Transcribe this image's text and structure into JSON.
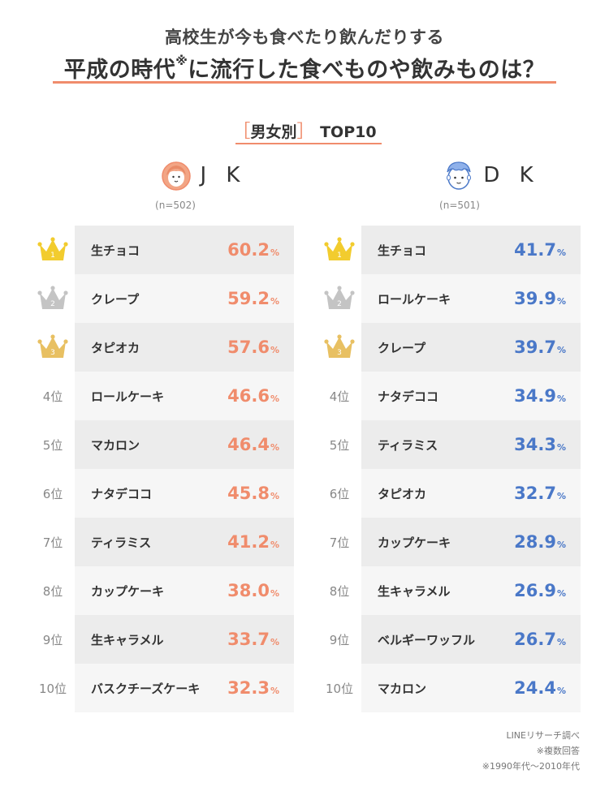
{
  "title_line1": "高校生が今も食べたり飲んだりする",
  "title_line2_main": "平成の時代",
  "title_line2_mark": "※",
  "title_line2_rest": "に流行した食べものや飲みものは？",
  "section": {
    "open": "［",
    "label": "男女別",
    "close": "］",
    "suffix": "TOP10"
  },
  "colors": {
    "accent": "#f08c6c",
    "jk_value": "#f08c6c",
    "dk_value": "#4a78c8",
    "row_dark": "#ececec",
    "row_light": "#f6f6f6",
    "gold": "#f2cc2e",
    "silver": "#c4c4c4",
    "bronze": "#e8c062"
  },
  "rank_icons": [
    "gold-crown",
    "silver-crown",
    "bronze-crown"
  ],
  "chart_data": [
    {
      "type": "table",
      "group": "J K",
      "n": "(n=502)",
      "unit": "%",
      "ranks": [
        "1",
        "2",
        "3",
        "4位",
        "5位",
        "6位",
        "7位",
        "8位",
        "9位",
        "10位"
      ],
      "items": [
        "生チョコ",
        "クレープ",
        "タピオカ",
        "ロールケーキ",
        "マカロン",
        "ナタデココ",
        "ティラミス",
        "カップケーキ",
        "生キャラメル",
        "バスクチーズケーキ"
      ],
      "values": [
        "60.2",
        "59.2",
        "57.6",
        "46.6",
        "46.4",
        "45.8",
        "41.2",
        "38.0",
        "33.7",
        "32.3"
      ]
    },
    {
      "type": "table",
      "group": "D K",
      "n": "(n=501)",
      "unit": "%",
      "ranks": [
        "1",
        "2",
        "3",
        "4位",
        "5位",
        "6位",
        "7位",
        "8位",
        "9位",
        "10位"
      ],
      "items": [
        "生チョコ",
        "ロールケーキ",
        "クレープ",
        "ナタデココ",
        "ティラミス",
        "タピオカ",
        "カップケーキ",
        "生キャラメル",
        "ベルギーワッフル",
        "マカロン"
      ],
      "values": [
        "41.7",
        "39.9",
        "39.7",
        "34.9",
        "34.3",
        "32.7",
        "28.9",
        "26.9",
        "26.7",
        "24.4"
      ]
    }
  ],
  "footer": [
    "LINEリサーチ調べ",
    "※複数回答",
    "※1990年代〜2010年代"
  ]
}
